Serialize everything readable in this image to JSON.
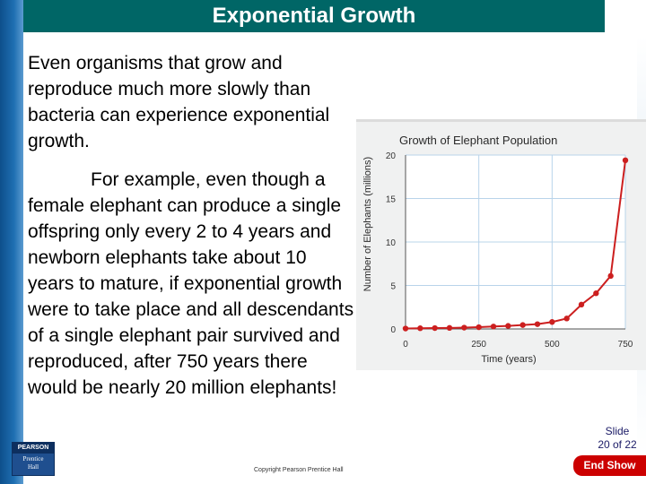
{
  "slide": {
    "title": "Exponential Growth",
    "paragraph1": "Even organisms that grow and reproduce much more slowly than bacteria can experience exponential growth.",
    "paragraph2": "For example, even though a female elephant can produce a single offspring only every 2 to 4 years and newborn elephants take about 10 years to mature, if exponential growth were to take place and all descendants of a single elephant pair survived and reproduced, after 750 years there would be nearly 20 million elephants!",
    "slide_number_line1": "Slide",
    "slide_number_line2": "20 of 22",
    "end_show_label": "End Show",
    "copyright": "Copyright Pearson Prentice Hall",
    "logo": {
      "top": "PEARSON",
      "line1": "Prentice",
      "line2": "Hall"
    }
  },
  "colors": {
    "title_bar": "#006666",
    "curve": "#cc1f1f",
    "end_show": "#cc0000"
  },
  "chart_data": {
    "type": "line",
    "title": "Growth of Elephant Population",
    "xlabel": "Time (years)",
    "ylabel": "Number of Elephants (millions)",
    "xlim": [
      0,
      750
    ],
    "ylim": [
      0,
      20
    ],
    "x_ticks": [
      "0",
      "250",
      "500",
      "750"
    ],
    "y_ticks": [
      "0",
      "5",
      "10",
      "15",
      "20"
    ],
    "grid": true,
    "series": [
      {
        "x": [
          0,
          50,
          100,
          150,
          200,
          250,
          300,
          350,
          400,
          450,
          500,
          550,
          600,
          650,
          700,
          750
        ],
        "y": [
          0.05,
          0.08,
          0.1,
          0.12,
          0.15,
          0.2,
          0.28,
          0.35,
          0.45,
          0.55,
          0.8,
          1.2,
          2.8,
          4.1,
          6.1,
          19.4
        ]
      }
    ]
  }
}
